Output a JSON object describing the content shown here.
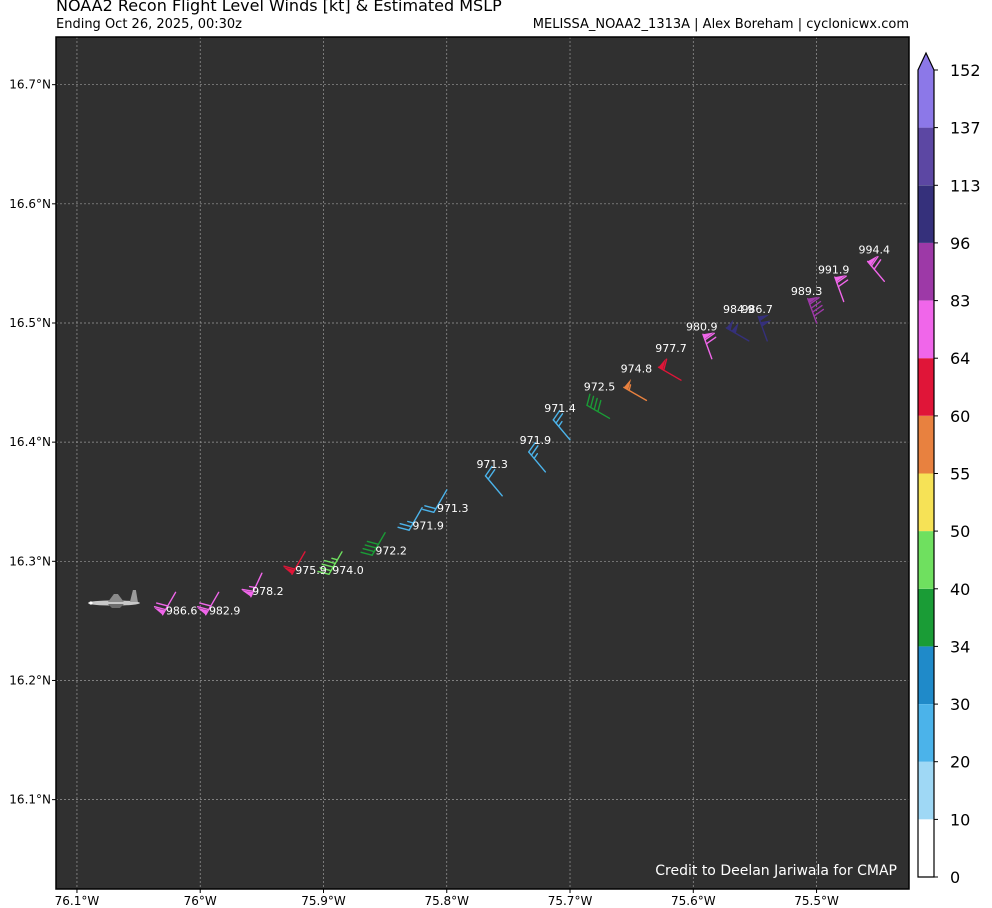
{
  "header": {
    "title": "NOAA2 Recon Flight Level Winds [kt] & Estimated MSLP",
    "subtitle": "Ending Oct 26, 2025, 00:30z",
    "source": "MELISSA_NOAA2_1313A | Alex Boreham | cyclonicwx.com"
  },
  "credit": "Credit to Deelan Jariwala for CMAP",
  "chart_data": {
    "type": "scatter",
    "title": "NOAA2 Recon Flight Level Winds [kt] & Estimated MSLP",
    "xlim": [
      -76.117,
      -75.425
    ],
    "ylim": [
      16.025,
      16.74
    ],
    "x_ticks": [
      -76.1,
      -76.0,
      -75.9,
      -75.8,
      -75.7,
      -75.6,
      -75.5
    ],
    "x_tick_labels": [
      "76.1°W",
      "76°W",
      "75.9°W",
      "75.8°W",
      "75.7°W",
      "75.6°W",
      "75.5°W"
    ],
    "y_ticks": [
      16.1,
      16.2,
      16.3,
      16.4,
      16.5,
      16.6,
      16.7
    ],
    "y_tick_labels": [
      "16.1°N",
      "16.2°N",
      "16.3°N",
      "16.4°N",
      "16.5°N",
      "16.6°N",
      "16.7°N"
    ],
    "grid": true,
    "aircraft": {
      "lon": -76.07,
      "lat": 16.265
    },
    "colorbar": {
      "bounds": [
        0,
        10,
        20,
        30,
        34,
        40,
        50,
        55,
        60,
        64,
        83,
        96,
        113,
        137,
        152
      ],
      "labels": [
        "0",
        "10",
        "20",
        "30",
        "34",
        "40",
        "50",
        "55",
        "60",
        "64",
        "83",
        "96",
        "113",
        "137",
        "152"
      ],
      "colors": [
        "#ffffff",
        "#9fd8f5",
        "#4bb3ea",
        "#1f8ac9",
        "#1a9c36",
        "#6fe05f",
        "#f6e256",
        "#e8813f",
        "#e01538",
        "#f066ea",
        "#9d39a7",
        "#35307b",
        "#5c47a3",
        "#8c78e8"
      ]
    },
    "points": [
      {
        "lon": -76.02,
        "lat": 16.274,
        "mslp": "986.6",
        "ws": 72,
        "dir": 210
      },
      {
        "lon": -75.985,
        "lat": 16.274,
        "mslp": "982.9",
        "ws": 70,
        "dir": 210
      },
      {
        "lon": -75.95,
        "lat": 16.29,
        "mslp": "978.2",
        "ws": 66,
        "dir": 205
      },
      {
        "lon": -75.915,
        "lat": 16.308,
        "mslp": "975.9",
        "ws": 62,
        "dir": 210
      },
      {
        "lon": -75.885,
        "lat": 16.308,
        "mslp": "974.0",
        "ws": 45,
        "dir": 210
      },
      {
        "lon": -75.85,
        "lat": 16.324,
        "mslp": "972.2",
        "ws": 38,
        "dir": 210
      },
      {
        "lon": -75.82,
        "lat": 16.345,
        "mslp": "971.9",
        "ws": 27,
        "dir": 210
      },
      {
        "lon": -75.8,
        "lat": 16.36,
        "mslp": "971.3",
        "ws": 22,
        "dir": 210
      },
      {
        "lon": -75.755,
        "lat": 16.355,
        "mslp": "971.3",
        "ws": 22,
        "dir": 320
      },
      {
        "lon": -75.72,
        "lat": 16.375,
        "mslp": "971.9",
        "ws": 25,
        "dir": 320
      },
      {
        "lon": -75.7,
        "lat": 16.402,
        "mslp": "971.4",
        "ws": 25,
        "dir": 320
      },
      {
        "lon": -75.668,
        "lat": 16.42,
        "mslp": "972.5",
        "ws": 38,
        "dir": 300
      },
      {
        "lon": -75.638,
        "lat": 16.435,
        "mslp": "974.8",
        "ws": 57,
        "dir": 300
      },
      {
        "lon": -75.61,
        "lat": 16.452,
        "mslp": "977.7",
        "ws": 62,
        "dir": 300
      },
      {
        "lon": -75.585,
        "lat": 16.47,
        "mslp": "980.9",
        "ws": 70,
        "dir": 340
      },
      {
        "lon": -75.555,
        "lat": 16.485,
        "mslp": "984.9",
        "ws": 100,
        "dir": 300
      },
      {
        "lon": -75.54,
        "lat": 16.485,
        "mslp": "986.7",
        "ws": 100,
        "dir": 340
      },
      {
        "lon": -75.5,
        "lat": 16.5,
        "mslp": "989.3",
        "ws": 90,
        "dir": 340
      },
      {
        "lon": -75.478,
        "lat": 16.518,
        "mslp": "991.9",
        "ws": 70,
        "dir": 340
      },
      {
        "lon": -75.445,
        "lat": 16.535,
        "mslp": "994.4",
        "ws": 68,
        "dir": 320
      }
    ]
  }
}
